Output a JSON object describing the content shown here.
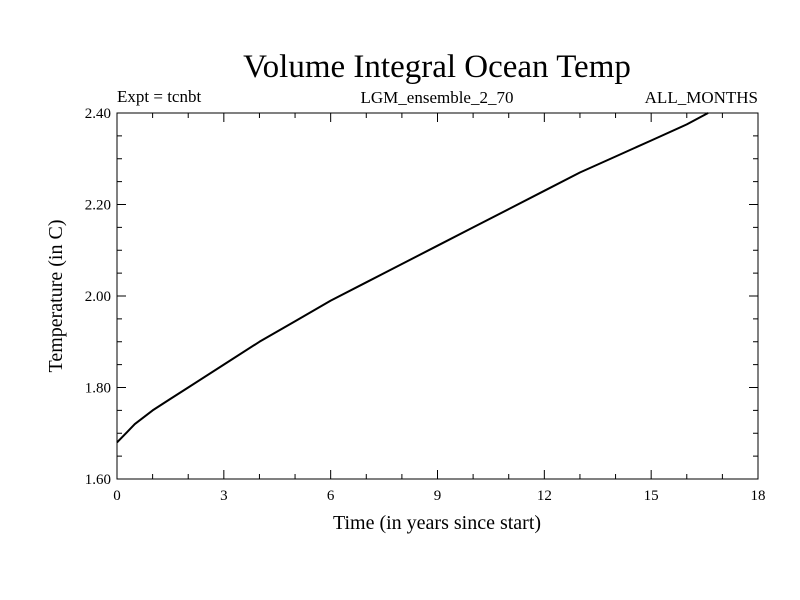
{
  "chart_data": {
    "type": "line",
    "title": "Volume Integral Ocean Temp",
    "subtitle_left": "Expt = tcnbt",
    "subtitle_center": "LGM_ensemble_2_70",
    "subtitle_right": "ALL_MONTHS",
    "xlabel": "Time (in years since start)",
    "ylabel": "Temperature (in C)",
    "xlim": [
      0,
      18
    ],
    "ylim": [
      1.6,
      2.4
    ],
    "x_ticks": [
      0,
      3,
      6,
      9,
      12,
      15,
      18
    ],
    "x_tick_labels": [
      "0",
      "3",
      "6",
      "9",
      "12",
      "15",
      "18"
    ],
    "y_ticks": [
      1.6,
      1.8,
      2.0,
      2.2,
      2.4
    ],
    "y_tick_labels": [
      "1.60",
      "1.80",
      "2.00",
      "2.20",
      "2.40"
    ],
    "x_minor_step": 1,
    "y_minor_step": 0.05,
    "grid": false,
    "series": [
      {
        "name": "Volume Integral Ocean Temp",
        "color": "#000000",
        "x": [
          0,
          0.25,
          0.5,
          1,
          1.5,
          2,
          3,
          4,
          5,
          6,
          7,
          8,
          9,
          10,
          11,
          12,
          13,
          14,
          15,
          16,
          16.6
        ],
        "values": [
          1.68,
          1.7,
          1.72,
          1.75,
          1.775,
          1.8,
          1.85,
          1.9,
          1.945,
          1.99,
          2.03,
          2.07,
          2.11,
          2.15,
          2.19,
          2.23,
          2.27,
          2.305,
          2.34,
          2.375,
          2.4
        ]
      }
    ]
  }
}
